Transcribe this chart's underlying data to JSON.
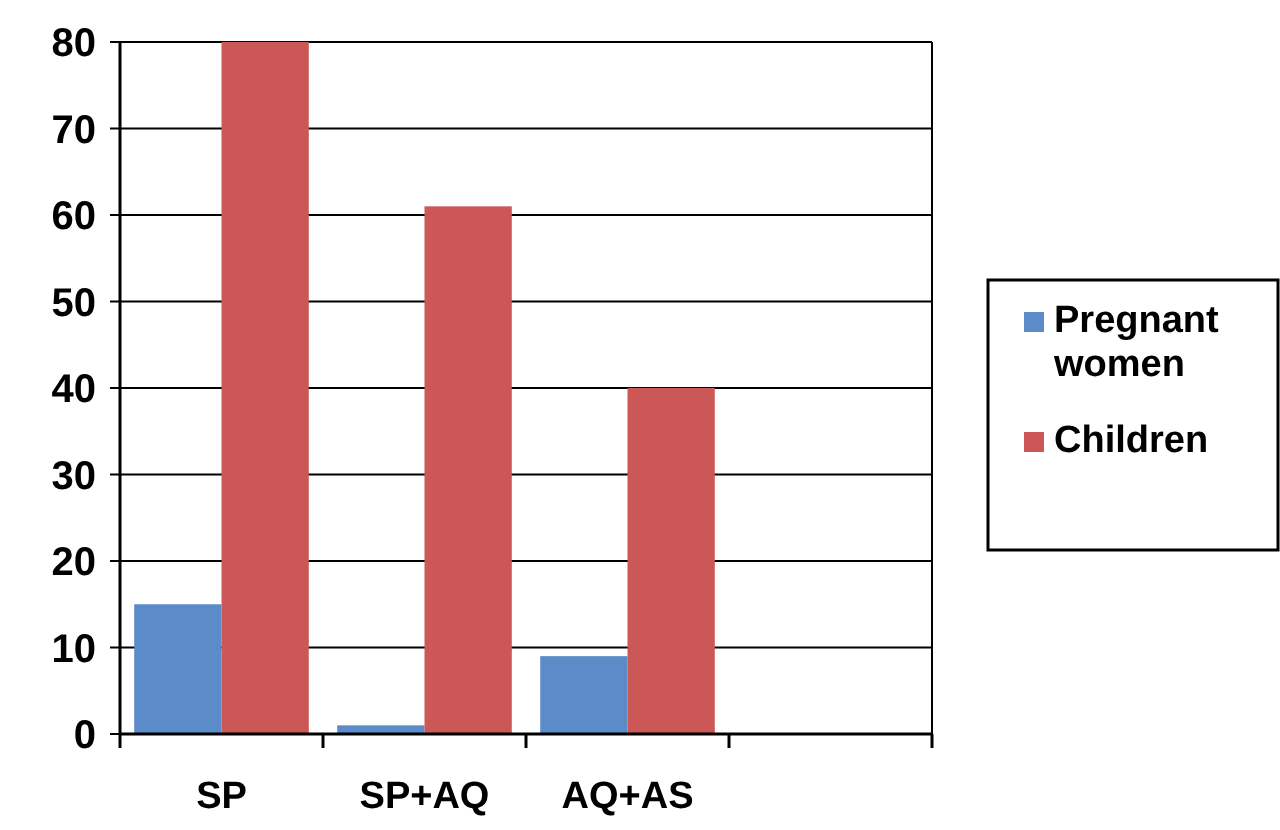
{
  "chart_data": {
    "type": "bar",
    "categories": [
      "SP",
      "SP+AQ",
      "AQ+AS",
      null
    ],
    "series": [
      {
        "name": "Pregnant women",
        "color": "#5b8bc9",
        "values": [
          15,
          1,
          9,
          null
        ]
      },
      {
        "name": "Children",
        "color": "#cb5856",
        "values": [
          80,
          61,
          40,
          null
        ]
      }
    ],
    "ylim": [
      0,
      80
    ],
    "yticks": [
      0,
      10,
      20,
      30,
      40,
      50,
      60,
      70,
      80
    ],
    "grid": "y",
    "legend": "right"
  }
}
